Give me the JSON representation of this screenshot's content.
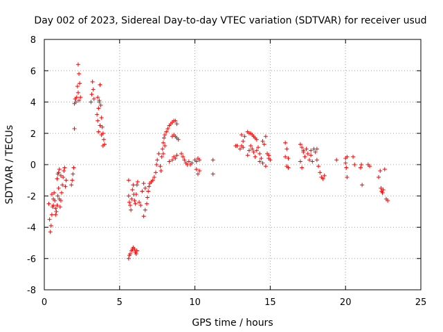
{
  "chart_data": {
    "type": "scatter",
    "title": "Day 002 of 2023, Sidereal Day-to-day VTEC variation (SDTVAR) for receiver usud",
    "xlabel": "GPS time / hours",
    "ylabel": "SDTVAR / TECUs",
    "xlim": [
      0,
      25
    ],
    "ylim": [
      -8,
      8
    ],
    "xticks": [
      0,
      5,
      10,
      15,
      20,
      25
    ],
    "yticks": [
      -8,
      -6,
      -4,
      -2,
      0,
      2,
      4,
      6,
      8
    ],
    "grid": true,
    "marker": "+",
    "color": "#ff0000",
    "series": [
      {
        "name": "SDTVAR",
        "points": [
          [
            0.3,
            -2.5
          ],
          [
            0.35,
            -3.5
          ],
          [
            0.4,
            -4.3
          ],
          [
            0.45,
            -3.9
          ],
          [
            0.5,
            -3.2
          ],
          [
            0.55,
            -2.7
          ],
          [
            0.6,
            -2.2
          ],
          [
            0.65,
            -1.8
          ],
          [
            0.7,
            -2.3
          ],
          [
            0.75,
            -2.8
          ],
          [
            0.8,
            -3.0
          ],
          [
            0.85,
            -2.6
          ],
          [
            0.9,
            -2.0
          ],
          [
            0.95,
            -1.5
          ],
          [
            1.0,
            -2.2
          ],
          [
            1.05,
            -2.7
          ],
          [
            1.1,
            -2.3
          ],
          [
            1.15,
            -1.8
          ],
          [
            1.2,
            -1.3
          ],
          [
            1.25,
            -0.8
          ],
          [
            1.3,
            -0.4
          ],
          [
            1.35,
            -0.2
          ],
          [
            1.4,
            -1.4
          ],
          [
            1.45,
            -1.0
          ],
          [
            0.85,
            -0.9
          ],
          [
            0.9,
            -0.6
          ],
          [
            0.95,
            -0.5
          ],
          [
            1.0,
            -0.3
          ],
          [
            1.1,
            -0.7
          ],
          [
            0.5,
            -1.9
          ],
          [
            0.6,
            -2.6
          ],
          [
            0.75,
            -3.2
          ],
          [
            1.8,
            -1.3
          ],
          [
            1.85,
            -1.0
          ],
          [
            1.9,
            -0.6
          ],
          [
            1.95,
            -0.2
          ],
          [
            2.0,
            2.3
          ],
          [
            2.0,
            3.9
          ],
          [
            2.05,
            4.2
          ],
          [
            2.1,
            4.0
          ],
          [
            2.15,
            4.3
          ],
          [
            2.2,
            5.0
          ],
          [
            2.25,
            6.4
          ],
          [
            2.3,
            5.8
          ],
          [
            2.35,
            5.2
          ],
          [
            2.4,
            4.3
          ],
          [
            2.3,
            4.1
          ],
          [
            2.25,
            4.6
          ],
          [
            3.1,
            4.0
          ],
          [
            3.15,
            4.5
          ],
          [
            3.2,
            5.3
          ],
          [
            3.25,
            4.8
          ],
          [
            3.3,
            4.2
          ],
          [
            3.5,
            3.2
          ],
          [
            3.55,
            2.8
          ],
          [
            3.6,
            3.6
          ],
          [
            3.65,
            4.1
          ],
          [
            3.7,
            5.1
          ],
          [
            3.75,
            3.8
          ],
          [
            3.8,
            3.0
          ],
          [
            3.85,
            2.4
          ],
          [
            3.9,
            2.0
          ],
          [
            3.95,
            1.6
          ],
          [
            4.0,
            1.3
          ],
          [
            3.6,
            2.1
          ],
          [
            3.7,
            2.5
          ],
          [
            3.8,
            1.9
          ],
          [
            3.9,
            1.2
          ],
          [
            3.55,
            4.3
          ],
          [
            3.65,
            4.0
          ],
          [
            5.6,
            -1.0
          ],
          [
            5.6,
            -2.0
          ],
          [
            5.65,
            -2.4
          ],
          [
            5.7,
            -2.6
          ],
          [
            5.75,
            -2.9
          ],
          [
            5.8,
            -2.2
          ],
          [
            5.85,
            -1.6
          ],
          [
            5.9,
            -1.3
          ],
          [
            5.95,
            -1.9
          ],
          [
            6.0,
            -2.3
          ],
          [
            6.05,
            -2.5
          ],
          [
            6.1,
            -1.9
          ],
          [
            6.15,
            -1.3
          ],
          [
            6.2,
            -1.1
          ],
          [
            6.3,
            -2.4
          ],
          [
            6.4,
            -2.6
          ],
          [
            6.5,
            -1.7
          ],
          [
            6.6,
            -1.2
          ],
          [
            6.7,
            -1.5
          ],
          [
            5.6,
            -6.0
          ],
          [
            5.65,
            -5.8
          ],
          [
            5.7,
            -5.7
          ],
          [
            5.8,
            -5.5
          ],
          [
            5.85,
            -5.4
          ],
          [
            5.9,
            -5.3
          ],
          [
            6.0,
            -5.4
          ],
          [
            6.05,
            -5.6
          ],
          [
            6.1,
            -5.7
          ],
          [
            6.15,
            -5.5
          ],
          [
            6.6,
            -3.3
          ],
          [
            6.7,
            -2.9
          ],
          [
            6.8,
            -2.5
          ],
          [
            6.85,
            -2.1
          ],
          [
            6.9,
            -1.7
          ],
          [
            6.95,
            -1.4
          ],
          [
            7.0,
            -1.2
          ],
          [
            7.1,
            -1.1
          ],
          [
            7.2,
            -1.0
          ],
          [
            7.3,
            -0.8
          ],
          [
            7.4,
            -0.5
          ],
          [
            7.45,
            0.0
          ],
          [
            7.5,
            0.3
          ],
          [
            7.6,
            0.7
          ],
          [
            7.7,
            -0.1
          ],
          [
            7.75,
            -0.4
          ],
          [
            7.8,
            0.5
          ],
          [
            7.85,
            1.0
          ],
          [
            7.9,
            1.4
          ],
          [
            7.95,
            1.7
          ],
          [
            8.0,
            1.9
          ],
          [
            8.1,
            2.1
          ],
          [
            8.2,
            2.3
          ],
          [
            8.3,
            2.5
          ],
          [
            8.4,
            2.6
          ],
          [
            8.5,
            2.7
          ],
          [
            8.6,
            2.8
          ],
          [
            8.7,
            2.8
          ],
          [
            8.8,
            2.6
          ],
          [
            8.5,
            1.8
          ],
          [
            8.6,
            1.9
          ],
          [
            8.7,
            1.8
          ],
          [
            8.8,
            1.7
          ],
          [
            8.9,
            1.6
          ],
          [
            8.5,
            0.3
          ],
          [
            8.6,
            0.5
          ],
          [
            8.7,
            0.4
          ],
          [
            8.8,
            0.6
          ],
          [
            8.3,
            0.2
          ],
          [
            7.9,
            0.7
          ],
          [
            8.0,
            1.2
          ],
          [
            9.1,
            0.7
          ],
          [
            9.2,
            0.5
          ],
          [
            9.3,
            0.3
          ],
          [
            9.4,
            0.1
          ],
          [
            9.5,
            0.0
          ],
          [
            9.6,
            0.2
          ],
          [
            9.7,
            0.0
          ],
          [
            9.8,
            0.1
          ],
          [
            10.0,
            0.3
          ],
          [
            10.1,
            0.2
          ],
          [
            10.2,
            0.4
          ],
          [
            10.3,
            0.3
          ],
          [
            10.1,
            -0.3
          ],
          [
            10.2,
            -0.6
          ],
          [
            10.3,
            -0.4
          ],
          [
            11.2,
            0.3
          ],
          [
            11.2,
            -0.6
          ],
          [
            12.7,
            1.2
          ],
          [
            12.8,
            1.2
          ],
          [
            13.0,
            1.0
          ],
          [
            13.1,
            1.2
          ],
          [
            13.2,
            1.5
          ],
          [
            13.3,
            1.8
          ],
          [
            13.1,
            1.9
          ],
          [
            13.2,
            1.1
          ],
          [
            13.5,
            2.1
          ],
          [
            13.6,
            2.0
          ],
          [
            13.7,
            2.0
          ],
          [
            13.8,
            1.9
          ],
          [
            13.9,
            1.8
          ],
          [
            14.0,
            1.7
          ],
          [
            14.1,
            1.6
          ],
          [
            13.5,
            0.6
          ],
          [
            13.6,
            0.9
          ],
          [
            13.7,
            1.2
          ],
          [
            13.8,
            1.0
          ],
          [
            13.9,
            0.8
          ],
          [
            14.0,
            0.5
          ],
          [
            14.1,
            0.9
          ],
          [
            14.2,
            1.1
          ],
          [
            14.3,
            0.7
          ],
          [
            14.4,
            0.4
          ],
          [
            14.5,
            1.5
          ],
          [
            14.6,
            1.3
          ],
          [
            14.7,
            1.8
          ],
          [
            14.8,
            0.7
          ],
          [
            14.9,
            0.4
          ],
          [
            15.0,
            0.3
          ],
          [
            14.3,
            0.2
          ],
          [
            14.5,
            0.1
          ],
          [
            14.7,
            -0.1
          ],
          [
            14.9,
            0.6
          ],
          [
            16.0,
            1.4
          ],
          [
            16.1,
            1.0
          ],
          [
            16.2,
            0.4
          ],
          [
            16.1,
            -0.1
          ],
          [
            16.2,
            -0.2
          ],
          [
            16.0,
            0.5
          ],
          [
            17.0,
            1.3
          ],
          [
            17.1,
            1.1
          ],
          [
            17.2,
            0.8
          ],
          [
            17.3,
            0.5
          ],
          [
            17.0,
            0.2
          ],
          [
            17.1,
            -0.2
          ],
          [
            17.2,
            0.9
          ],
          [
            17.4,
            1.0
          ],
          [
            17.5,
            0.7
          ],
          [
            17.6,
            0.3
          ],
          [
            17.7,
            0.6
          ],
          [
            17.8,
            0.2
          ],
          [
            17.9,
            1.0
          ],
          [
            18.0,
            0.8
          ],
          [
            18.1,
            0.3
          ],
          [
            18.2,
            -0.1
          ],
          [
            18.3,
            -0.5
          ],
          [
            18.4,
            -0.8
          ],
          [
            18.5,
            -0.9
          ],
          [
            18.6,
            -0.7
          ],
          [
            18.1,
            1.0
          ],
          [
            17.7,
            0.9
          ],
          [
            19.4,
            0.3
          ],
          [
            20.0,
            0.4
          ],
          [
            20.05,
            -0.2
          ],
          [
            20.1,
            -0.8
          ],
          [
            20.1,
            0.5
          ],
          [
            20.0,
            0.1
          ],
          [
            20.5,
            0.5
          ],
          [
            20.6,
            0.0
          ],
          [
            21.0,
            -0.2
          ],
          [
            21.05,
            0.0
          ],
          [
            21.1,
            -1.3
          ],
          [
            21.5,
            0.0
          ],
          [
            21.6,
            -0.1
          ],
          [
            22.2,
            -0.8
          ],
          [
            22.3,
            -0.4
          ],
          [
            22.35,
            -1.5
          ],
          [
            22.4,
            -1.7
          ],
          [
            22.45,
            -1.8
          ],
          [
            22.5,
            -1.6
          ],
          [
            22.6,
            -0.3
          ],
          [
            22.7,
            -2.2
          ],
          [
            22.8,
            -2.3
          ]
        ]
      }
    ]
  }
}
